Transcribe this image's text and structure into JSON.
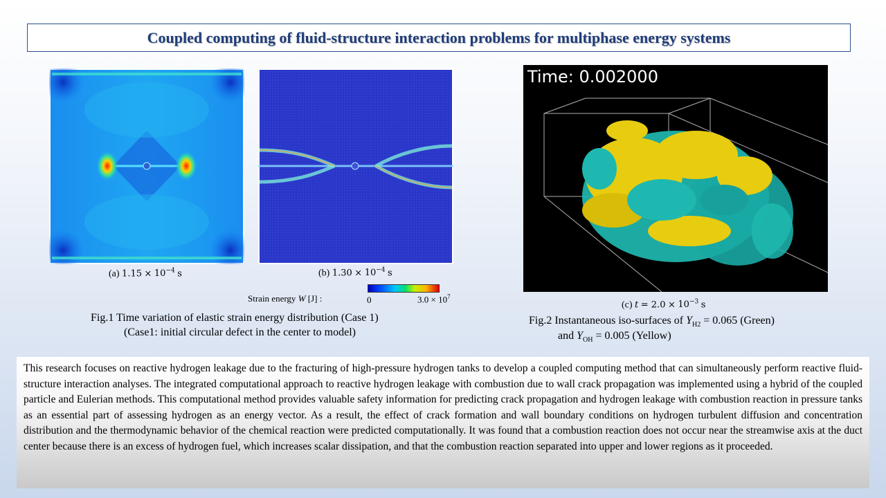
{
  "title": "Coupled computing of fluid-structure interaction problems for multiphase energy systems",
  "figure1": {
    "panel_a": {
      "prefix": "(a)",
      "value": "1.15",
      "times": "×",
      "base": "10",
      "exp": "−4",
      "unit": "s"
    },
    "panel_b": {
      "prefix": "(b)",
      "value": "1.30",
      "times": "×",
      "base": "10",
      "exp": "−4",
      "unit": "s"
    },
    "colorbar": {
      "label_text": "Strain energy",
      "label_symbol": "W",
      "label_unit": "[J] :",
      "min": "0",
      "max_value": "3.0",
      "max_times": "×",
      "max_base": "10",
      "max_exp": "7"
    },
    "caption_line1": "Fig.1  Time variation of elastic strain energy distribution (Case 1)",
    "caption_line2": "(Case1: initial  circular defect in the center to model)"
  },
  "figure2": {
    "time_overlay": "Time: 0.002000",
    "panel_c": {
      "prefix": "(c)",
      "var": "t",
      "eq": "= 2.0",
      "times": "×",
      "base": "10",
      "exp": "−3",
      "unit": "s"
    },
    "caption_l1_pre": "Fig.2 Instantaneous iso-surfaces of ",
    "caption_l1_var": "Y",
    "caption_l1_sub": "H2",
    "caption_l1_post": " = 0.065 (Green)",
    "caption_l2_pre": "and ",
    "caption_l2_var": "Y",
    "caption_l2_sub": "OH",
    "caption_l2_post": " = 0.005 (Yellow)"
  },
  "abstract": "This research focuses on reactive hydrogen leakage due to the fracturing of high-pressure hydrogen tanks to develop a coupled computing method that can simultaneously perform reactive fluid-structure interaction analyses. The integrated computational approach to reactive hydrogen leakage with combustion due to wall crack propagation was implemented using a hybrid of the coupled particle and Eulerian methods. This computational method provides valuable safety information for predicting crack propagation and hydrogen leakage with combustion reaction in pressure tanks as an essential part of assessing hydrogen as an energy vector. As a result, the effect of crack formation and wall boundary conditions on hydrogen turbulent diffusion and concentration distribution and the thermodynamic behavior of the chemical reaction were predicted computationally. It was found that a combustion reaction does not occur near the streamwise axis at the duct center because there is an excess of hydrogen fuel, which increases scalar dissipation, and that the combustion reaction separated into upper and lower regions as it proceeded.",
  "colors": {
    "title_text": "#1f3d7a",
    "title_border": "#2f4f8f",
    "green_isosurface": "#1fb8b0",
    "yellow_isosurface": "#e8cc10"
  }
}
